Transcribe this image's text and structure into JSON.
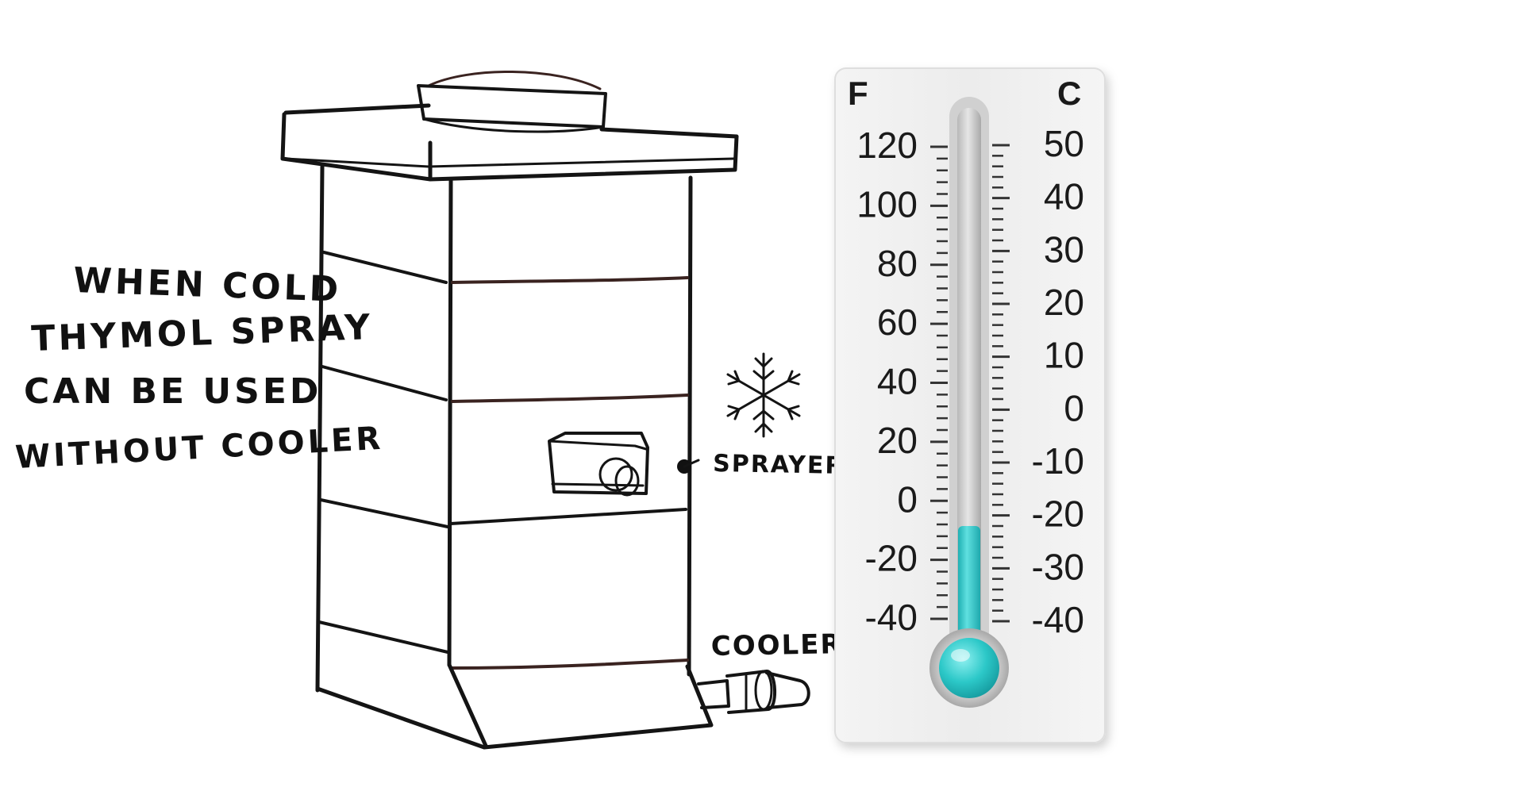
{
  "annotation": {
    "lines": [
      "WHEN COLD",
      "THYMOL SPRAY",
      "CAN BE USED",
      "WITHOUT COOLER"
    ]
  },
  "labels": {
    "sprayer": "SPRAYER",
    "cooler": "COOLER"
  },
  "icons": {
    "cold": "snowflake-icon"
  },
  "thermometer": {
    "left_unit": "F",
    "right_unit": "C",
    "fahrenheit_ticks": [
      "120",
      "100",
      "80",
      "60",
      "40",
      "20",
      "0",
      "-20",
      "-40"
    ],
    "celsius_ticks": [
      "50",
      "40",
      "30",
      "20",
      "10",
      "0",
      "-10",
      "-20",
      "-30",
      "-40"
    ],
    "level_celsius": -22,
    "liquid_color": "#2cc8c8"
  }
}
